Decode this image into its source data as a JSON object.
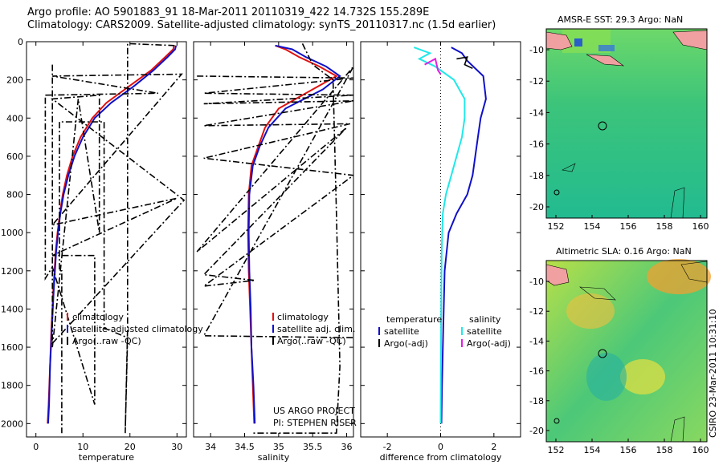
{
  "header": {
    "line1": "Argo profile: AO 5901883_91 18-Mar-2011 20110319_422 14.732S 155.289E",
    "line2": "Climatology: CARS2009. Satellite-adjusted climatology: synTS_20110317.nc (1.5d earlier)"
  },
  "sidebar_text": "CSIRO 23-Mar-2011 10:31:10",
  "project": {
    "line1": "US ARGO PROJECT",
    "line2": "PI: STEPHEN RISER"
  },
  "colors": {
    "climatology": "#e01010",
    "satellite": "#1010c8",
    "argo": "#000000",
    "satellite_sal": "#20e8e8",
    "argo_adj_sal": "#e020e0"
  },
  "chart_data": [
    {
      "type": "line",
      "id": "temperature",
      "xlabel": "temperature",
      "xlim": [
        -2,
        32
      ],
      "ylim": [
        2070,
        0
      ],
      "xticks": [
        0,
        10,
        20,
        30
      ],
      "yticks": [
        0,
        200,
        400,
        600,
        800,
        1000,
        1200,
        1400,
        1600,
        1800,
        2000
      ],
      "legend": [
        "climatology",
        "satellite-adjusted climatology",
        "Argo(..raw -QC)"
      ],
      "series": [
        {
          "name": "climatology",
          "color": "#e01010",
          "x": [
            29.4,
            29.2,
            27.5,
            24.5,
            20,
            15,
            12,
            9.5,
            7.8,
            6.6,
            5.7,
            5.1,
            4.6,
            4.2,
            3.7,
            3.3,
            3.0,
            2.7,
            2.5
          ],
          "y": [
            20,
            40,
            80,
            150,
            230,
            320,
            400,
            500,
            600,
            700,
            800,
            900,
            1000,
            1100,
            1300,
            1500,
            1700,
            1900,
            2000
          ]
        },
        {
          "name": "satellite",
          "color": "#1010c8",
          "x": [
            29.8,
            29.6,
            28,
            25,
            21,
            16,
            12.5,
            10,
            8.2,
            6.9,
            5.9,
            5.2,
            4.7,
            4.3,
            3.8,
            3.4,
            3.0,
            2.8,
            2.6
          ],
          "y": [
            20,
            40,
            80,
            150,
            230,
            320,
            400,
            500,
            600,
            700,
            800,
            900,
            1000,
            1100,
            1300,
            1500,
            1700,
            1900,
            2000
          ]
        },
        {
          "name": "argo_raw",
          "color": "#000000",
          "dash": "8,3,2,3",
          "x": [
            29.5,
            19.5,
            19.5,
            19.5,
            19.5,
            19.0,
            19.5,
            14.5,
            14.5,
            5.0,
            5.0,
            5.5,
            5.5
          ],
          "y": [
            20,
            10,
            500,
            1000,
            1500,
            2050,
            1550,
            1500,
            420,
            420,
            1200,
            1200,
            2050
          ]
        },
        {
          "name": "argo_raw_b",
          "color": "#000000",
          "dash": "8,3,2,3",
          "x": [
            2.0,
            26.0,
            3.5,
            31.0,
            3.5,
            30.0,
            3.5,
            12.5,
            12.5,
            3.5,
            2.0,
            2.0
          ],
          "y": [
            280,
            270,
            180,
            170,
            960,
            820,
            1120,
            1120,
            1900,
            1180,
            1240,
            280
          ]
        },
        {
          "name": "argo_raw_c",
          "color": "#000000",
          "dash": "8,3,2,3",
          "x": [
            3.5,
            3.5,
            9,
            13.5,
            13.5,
            3.5,
            31.5,
            3.5
          ],
          "y": [
            120,
            1600,
            300,
            1000,
            280,
            300,
            830,
            1580
          ]
        }
      ]
    },
    {
      "type": "line",
      "id": "salinity",
      "xlabel": "salinity",
      "xlim": [
        33.75,
        36.1
      ],
      "ylim": [
        2070,
        0
      ],
      "xticks": [
        34,
        34.5,
        35,
        35.5,
        36
      ],
      "legend": [
        "climatology",
        "satellite adj. clim.",
        "Argo(..raw -QC)"
      ],
      "series": [
        {
          "name": "climatology",
          "color": "#e01010",
          "x": [
            34.95,
            35.1,
            35.3,
            35.6,
            35.85,
            35.5,
            35.0,
            34.8,
            34.7,
            34.6,
            34.56,
            34.55,
            34.56,
            34.58,
            34.6,
            34.62,
            34.64
          ],
          "y": [
            20,
            40,
            80,
            130,
            180,
            250,
            350,
            450,
            550,
            650,
            800,
            1000,
            1200,
            1400,
            1600,
            1800,
            2000
          ]
        },
        {
          "name": "satellite",
          "color": "#1010c8",
          "x": [
            34.95,
            35.2,
            35.4,
            35.7,
            35.9,
            35.65,
            35.1,
            34.85,
            34.72,
            34.62,
            34.57,
            34.56,
            34.57,
            34.59,
            34.6,
            34.63,
            34.65
          ],
          "y": [
            20,
            40,
            80,
            130,
            180,
            250,
            350,
            450,
            550,
            650,
            800,
            1000,
            1200,
            1400,
            1600,
            1800,
            2000
          ]
        },
        {
          "name": "argo_raw",
          "color": "#000000",
          "dash": "8,3,2,3",
          "x": [
            33.8,
            36.1,
            33.9,
            36.1,
            33.9,
            36.1,
            33.9,
            36.05,
            33.9,
            36.1,
            33.9,
            34.65,
            33.9,
            36.0,
            33.8,
            36.1,
            33.9,
            36.1
          ],
          "y": [
            180,
            190,
            270,
            280,
            325,
            310,
            440,
            430,
            610,
            700,
            1280,
            1250,
            1220,
            450,
            1100,
            130,
            1540,
            1550
          ]
        },
        {
          "name": "argo_raw_b",
          "color": "#000000",
          "dash": "8,3,2,3",
          "x": [
            35.35,
            35.5,
            35.8,
            35.85,
            35.9,
            35.85,
            34.6
          ],
          "y": [
            10,
            120,
            200,
            900,
            1700,
            2050,
            2050
          ]
        }
      ]
    },
    {
      "type": "line",
      "id": "difference",
      "xlabel": "difference from climatology",
      "xlim": [
        -3,
        3
      ],
      "ylim": [
        2070,
        0
      ],
      "xticks": [
        -2,
        0,
        2
      ],
      "legend_header": [
        "temperature",
        "salinity"
      ],
      "legend": [
        "satellite",
        "Argo(-adj)",
        "satellite",
        "Argo(-adj)"
      ],
      "series": [
        {
          "name": "temp_satellite",
          "color": "#1010c8",
          "x": [
            0.4,
            0.8,
            1.0,
            1.6,
            1.7,
            1.5,
            1.4,
            1.3,
            1.2,
            1.0,
            0.6,
            0.3,
            0.15,
            0.1,
            0.05,
            0.03
          ],
          "y": [
            30,
            60,
            100,
            180,
            300,
            400,
            500,
            600,
            700,
            800,
            900,
            1000,
            1200,
            1500,
            1800,
            2000
          ]
        },
        {
          "name": "sal_satellite",
          "color": "#20e8e8",
          "x": [
            -1.0,
            -0.4,
            -0.8,
            -0.2,
            0.5,
            0.9,
            0.9,
            0.8,
            0.6,
            0.4,
            0.2,
            0.08,
            0.04,
            0.02,
            0.01,
            0.0
          ],
          "y": [
            30,
            60,
            90,
            130,
            200,
            300,
            400,
            500,
            600,
            700,
            800,
            900,
            1100,
            1400,
            1700,
            2000
          ]
        },
        {
          "name": "temp_argo",
          "color": "#000000",
          "x": [
            0.6,
            1.0,
            0.9,
            1.2
          ],
          "y": [
            90,
            80,
            120,
            140
          ]
        },
        {
          "name": "sal_argo",
          "color": "#e020e0",
          "x": [
            -0.6,
            -0.2,
            -0.1,
            0.0
          ],
          "y": [
            120,
            90,
            150,
            170
          ]
        }
      ]
    }
  ],
  "maps": [
    {
      "id": "sst",
      "title": "AMSR-E SST: 29.3 Argo: NaN",
      "xticks": [
        "152",
        "154",
        "156",
        "158",
        "160"
      ],
      "yticks": [
        "-10",
        "-12",
        "-14",
        "-16",
        "-18",
        "-20"
      ]
    },
    {
      "id": "sla",
      "title": "Altimetric SLA: 0.16 Argo: NaN",
      "xticks": [
        "152",
        "154",
        "156",
        "158",
        "160"
      ],
      "yticks": [
        "-10",
        "-12",
        "-14",
        "-16",
        "-18",
        "-20"
      ]
    }
  ]
}
